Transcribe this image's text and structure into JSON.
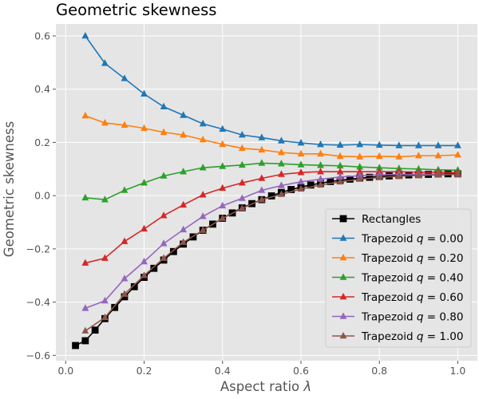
{
  "chart_data": {
    "type": "line",
    "title": "Geometric skewness",
    "xlabel": "Aspect ratio λ",
    "ylabel": "Geometric skewness",
    "xlim": [
      -0.025,
      1.05
    ],
    "ylim": [
      -0.62,
      0.645
    ],
    "xticks": [
      0.0,
      0.2,
      0.4,
      0.6,
      0.8,
      1.0
    ],
    "xtick_labels": [
      "0.0",
      "0.2",
      "0.4",
      "0.6",
      "0.8",
      "1.0"
    ],
    "yticks": [
      -0.6,
      -0.4,
      -0.2,
      0.0,
      0.2,
      0.4,
      0.6
    ],
    "ytick_labels": [
      "−0.6",
      "−0.4",
      "−0.2",
      "0.0",
      "0.2",
      "0.4",
      "0.6"
    ],
    "grid": true,
    "legend_position": "lower-right",
    "background": "#e5e5e5",
    "series": [
      {
        "name": "Rectangles",
        "prefix": "Rectangles",
        "q": "",
        "color": "#000000",
        "marker": "square",
        "x": [
          0.025,
          0.05,
          0.075,
          0.1,
          0.125,
          0.15,
          0.175,
          0.2,
          0.225,
          0.25,
          0.275,
          0.3,
          0.325,
          0.35,
          0.375,
          0.4,
          0.425,
          0.45,
          0.475,
          0.5,
          0.525,
          0.55,
          0.575,
          0.6,
          0.625,
          0.65,
          0.675,
          0.7,
          0.725,
          0.75,
          0.775,
          0.8,
          0.825,
          0.85,
          0.875,
          0.9,
          0.925,
          0.95,
          0.975,
          1.0
        ],
        "y": [
          -0.563,
          -0.545,
          -0.505,
          -0.462,
          -0.42,
          -0.38,
          -0.342,
          -0.307,
          -0.273,
          -0.242,
          -0.21,
          -0.182,
          -0.155,
          -0.13,
          -0.107,
          -0.085,
          -0.065,
          -0.046,
          -0.03,
          -0.015,
          -0.001,
          0.012,
          0.023,
          0.032,
          0.04,
          0.047,
          0.053,
          0.058,
          0.062,
          0.066,
          0.069,
          0.072,
          0.074,
          0.076,
          0.078,
          0.079,
          0.08,
          0.081,
          0.082,
          0.082
        ]
      },
      {
        "name": "Trapezoid q = 0.00",
        "prefix": "Trapezoid ",
        "q": "q = 0.00",
        "color": "#1f77b4",
        "marker": "triangle",
        "x": [
          0.05,
          0.1,
          0.15,
          0.2,
          0.25,
          0.3,
          0.35,
          0.4,
          0.45,
          0.5,
          0.55,
          0.6,
          0.65,
          0.7,
          0.75,
          0.8,
          0.85,
          0.9,
          0.95,
          1.0
        ],
        "y": [
          0.6,
          0.497,
          0.44,
          0.382,
          0.334,
          0.302,
          0.27,
          0.25,
          0.228,
          0.218,
          0.206,
          0.198,
          0.192,
          0.19,
          0.192,
          0.19,
          0.188,
          0.188,
          0.188,
          0.188
        ]
      },
      {
        "name": "Trapezoid q = 0.20",
        "prefix": "Trapezoid ",
        "q": "q = 0.20",
        "color": "#ff7f0e",
        "marker": "triangle",
        "x": [
          0.05,
          0.1,
          0.15,
          0.2,
          0.25,
          0.3,
          0.35,
          0.4,
          0.45,
          0.5,
          0.55,
          0.6,
          0.65,
          0.7,
          0.75,
          0.8,
          0.85,
          0.9,
          0.95,
          1.0
        ],
        "y": [
          0.3,
          0.273,
          0.265,
          0.253,
          0.238,
          0.228,
          0.21,
          0.193,
          0.178,
          0.172,
          0.162,
          0.157,
          0.157,
          0.148,
          0.146,
          0.148,
          0.146,
          0.15,
          0.15,
          0.153
        ]
      },
      {
        "name": "Trapezoid q = 0.40",
        "prefix": "Trapezoid ",
        "q": "q = 0.40",
        "color": "#2ca02c",
        "marker": "triangle",
        "x": [
          0.05,
          0.1,
          0.15,
          0.2,
          0.25,
          0.3,
          0.35,
          0.4,
          0.45,
          0.5,
          0.55,
          0.6,
          0.65,
          0.7,
          0.75,
          0.8,
          0.85,
          0.9,
          0.95,
          1.0
        ],
        "y": [
          -0.008,
          -0.015,
          0.02,
          0.048,
          0.074,
          0.09,
          0.105,
          0.11,
          0.115,
          0.122,
          0.12,
          0.116,
          0.114,
          0.112,
          0.108,
          0.105,
          0.102,
          0.1,
          0.097,
          0.096
        ]
      },
      {
        "name": "Trapezoid q = 0.60",
        "prefix": "Trapezoid ",
        "q": "q = 0.60",
        "color": "#d62728",
        "marker": "triangle",
        "x": [
          0.05,
          0.1,
          0.15,
          0.2,
          0.25,
          0.3,
          0.35,
          0.4,
          0.45,
          0.5,
          0.55,
          0.6,
          0.65,
          0.7,
          0.75,
          0.8,
          0.85,
          0.9,
          0.95,
          1.0
        ],
        "y": [
          -0.253,
          -0.235,
          -0.172,
          -0.125,
          -0.075,
          -0.035,
          0.003,
          0.028,
          0.048,
          0.065,
          0.08,
          0.087,
          0.09,
          0.09,
          0.09,
          0.09,
          0.09,
          0.088,
          0.088,
          0.087
        ]
      },
      {
        "name": "Trapezoid q = 0.80",
        "prefix": "Trapezoid ",
        "q": "q = 0.80",
        "color": "#9467bd",
        "marker": "triangle",
        "x": [
          0.05,
          0.1,
          0.15,
          0.2,
          0.25,
          0.3,
          0.35,
          0.4,
          0.45,
          0.5,
          0.55,
          0.6,
          0.65,
          0.7,
          0.75,
          0.8,
          0.85,
          0.9,
          0.95,
          1.0
        ],
        "y": [
          -0.423,
          -0.395,
          -0.312,
          -0.248,
          -0.18,
          -0.128,
          -0.078,
          -0.038,
          -0.01,
          0.02,
          0.038,
          0.052,
          0.062,
          0.07,
          0.075,
          0.078,
          0.08,
          0.081,
          0.08,
          0.08
        ]
      },
      {
        "name": "Trapezoid q = 1.00",
        "prefix": "Trapezoid ",
        "q": "q = 1.00",
        "color": "#8c564b",
        "marker": "triangle",
        "x": [
          0.05,
          0.1,
          0.15,
          0.2,
          0.25,
          0.3,
          0.35,
          0.4,
          0.45,
          0.5,
          0.55,
          0.6,
          0.65,
          0.7,
          0.75,
          0.8,
          0.85,
          0.9,
          0.95,
          1.0
        ],
        "y": [
          -0.508,
          -0.458,
          -0.37,
          -0.3,
          -0.235,
          -0.175,
          -0.13,
          -0.085,
          -0.048,
          -0.015,
          0.005,
          0.025,
          0.04,
          0.052,
          0.062,
          0.068,
          0.073,
          0.076,
          0.078,
          0.08
        ]
      }
    ]
  }
}
